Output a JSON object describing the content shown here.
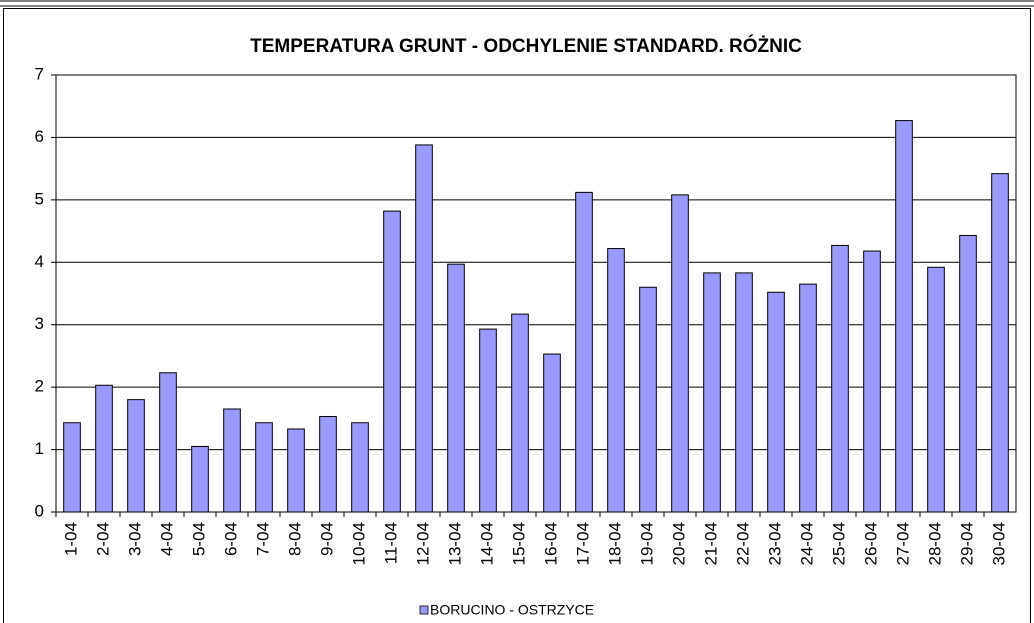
{
  "chart_data": {
    "type": "bar",
    "title": "TEMPERATURA GRUNT - ODCHYLENIE STANDARD. RÓŻNIC",
    "categories": [
      "1-04",
      "2-04",
      "3-04",
      "4-04",
      "5-04",
      "6-04",
      "7-04",
      "8-04",
      "9-04",
      "10-04",
      "11-04",
      "12-04",
      "13-04",
      "14-04",
      "15-04",
      "16-04",
      "17-04",
      "18-04",
      "19-04",
      "20-04",
      "21-04",
      "22-04",
      "23-04",
      "24-04",
      "25-04",
      "26-04",
      "27-04",
      "28-04",
      "29-04",
      "30-04"
    ],
    "series": [
      {
        "name": "BORUCINO  - OSTRZYCE",
        "color": "#9999ff",
        "values": [
          1.43,
          2.03,
          1.8,
          2.23,
          1.05,
          1.65,
          1.43,
          1.33,
          1.53,
          1.43,
          4.82,
          5.88,
          3.97,
          2.93,
          3.17,
          2.53,
          5.12,
          4.22,
          3.6,
          5.08,
          3.83,
          3.83,
          3.52,
          3.65,
          4.27,
          4.18,
          6.27,
          3.92,
          4.43,
          5.42
        ]
      }
    ],
    "ylim": [
      0,
      7
    ],
    "yticks": [
      0,
      1,
      2,
      3,
      4,
      5,
      6,
      7
    ],
    "grid": true,
    "legend": "bottom"
  }
}
